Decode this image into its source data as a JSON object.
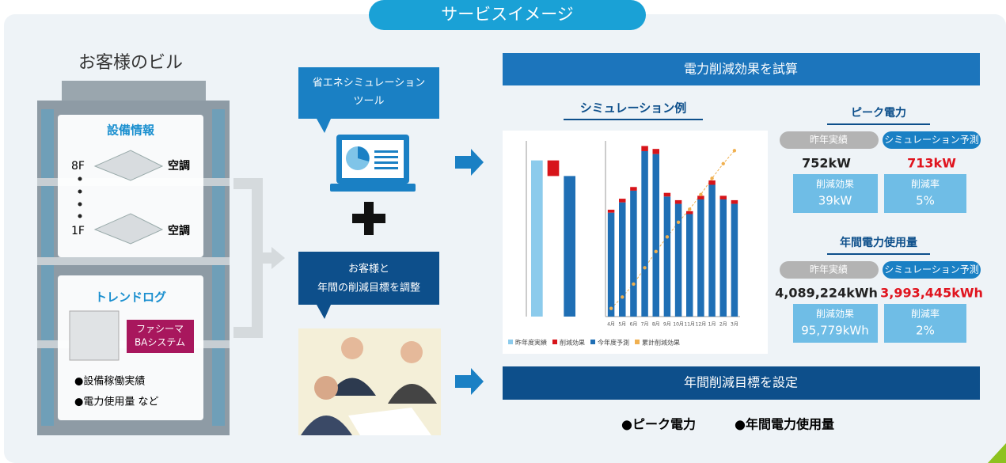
{
  "header": {
    "title": "サービスイメージ"
  },
  "building": {
    "title": "お客様のビル",
    "equipment": {
      "title": "設備情報",
      "floors": [
        {
          "floor": "8F",
          "label": "空調"
        },
        {
          "floor": "1F",
          "label": "空調"
        }
      ]
    },
    "trend": {
      "title": "トレンドログ",
      "system": [
        "ファシーマ",
        "BAシステム"
      ],
      "items": [
        "●設備稼働実績",
        "●電力使用量 など"
      ]
    }
  },
  "tool": {
    "bubble": [
      "省エネシミュレーション",
      "ツール"
    ]
  },
  "meeting": {
    "bubble": [
      "お客様と",
      "年間の削減目標を調整"
    ]
  },
  "estimate": {
    "title": "電力削減効果を試算",
    "example_title": "シミュレーション例",
    "peak": {
      "title": "ピーク電力",
      "last_label": "昨年実績",
      "sim_label": "シミュレーション予測",
      "last": "752kW",
      "sim": "713kW",
      "effect_label": "削減効果",
      "effect": "39kW",
      "rate_label": "削減率",
      "rate": "5%"
    },
    "annual": {
      "title": "年間電力使用量",
      "last_label": "昨年実績",
      "sim_label": "シミュレーション予測",
      "last": "4,089,224kWh",
      "sim": "3,993,445kWh",
      "effect_label": "削減効果",
      "effect": "95,779kWh",
      "rate_label": "削減率",
      "rate": "2%"
    }
  },
  "simulation_chart": [
    {
      "type": "bar",
      "ylim": [
        0,
        450
      ],
      "series": [
        {
          "name": "昨年度実績",
          "color": "#8ccbec",
          "values": [
            400,
            null,
            null
          ]
        },
        {
          "name": "削減効果",
          "color": "#d7141a",
          "values": [
            null,
            40,
            null
          ]
        },
        {
          "name": "今年度予測",
          "color": "#1f6fb5",
          "values": [
            null,
            null,
            360
          ]
        }
      ]
    },
    {
      "type": "stacked-bar-line",
      "categories": [
        "4月",
        "5月",
        "6月",
        "7月",
        "8月",
        "9月",
        "10月",
        "11月",
        "12月",
        "1月",
        "2月",
        "3月"
      ],
      "ylim": [
        0,
        120000
      ],
      "y2lim": [
        0,
        54000
      ],
      "series": [
        {
          "name": "今年度予測",
          "color": "#1f6fb5",
          "values": [
            71000,
            78000,
            86000,
            113000,
            111000,
            82000,
            77000,
            70000,
            80000,
            90000,
            80000,
            77000
          ]
        },
        {
          "name": "削減効果",
          "color": "#d7141a",
          "values": [
            2000,
            2500,
            2500,
            3500,
            3500,
            2500,
            2500,
            2000,
            2500,
            3000,
            2500,
            2500
          ]
        },
        {
          "name": "累計削減効果",
          "color": "#f0b050",
          "axis": "y2",
          "values": [
            2500,
            6000,
            10000,
            15000,
            20000,
            24500,
            29000,
            33000,
            37500,
            42500,
            47000,
            51000
          ]
        }
      ]
    }
  ],
  "target": {
    "title": "年間削減目標を設定",
    "items": [
      "●ピーク電力",
      "●年間電力使用量"
    ]
  }
}
